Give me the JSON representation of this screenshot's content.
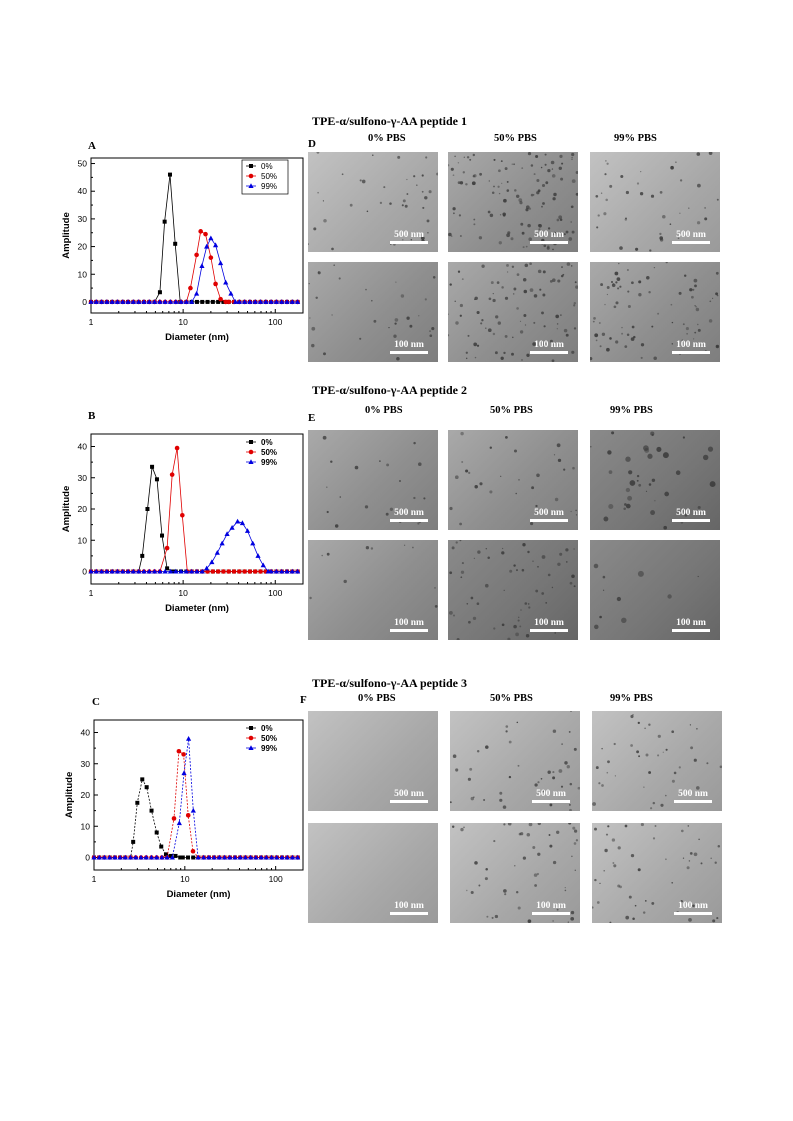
{
  "sections": [
    {
      "title": "TPE-α/sulfono-γ-AA peptide 1",
      "chart_letter": "A",
      "micro_letter": "D",
      "columns": [
        "0% PBS",
        "50% PBS",
        "99% PBS"
      ]
    },
    {
      "title": "TPE-α/sulfono-γ-AA peptide 2",
      "chart_letter": "B",
      "micro_letter": "E",
      "columns": [
        "0% PBS",
        "50% PBS",
        "99% PBS"
      ]
    },
    {
      "title": "TPE-α/sulfono-γ-AA peptide 3",
      "chart_letter": "C",
      "micro_letter": "F",
      "columns": [
        "0% PBS",
        "50% PBS",
        "99% PBS"
      ]
    }
  ],
  "scale_bars": {
    "top_row": "500 nm",
    "bottom_row": "100 nm"
  },
  "colors": {
    "0%": "#000000",
    "50%": "#e00000",
    "99%": "#0000e0"
  },
  "chart_data": [
    {
      "type": "scatter",
      "panel": "A",
      "xlabel": "Diameter (nm)",
      "ylabel": "Amplitude",
      "xscale": "log",
      "xlim": [
        1,
        200
      ],
      "ylim": [
        -4,
        52
      ],
      "yticks": [
        0,
        10,
        20,
        30,
        40,
        50
      ],
      "xticks": [
        1,
        10,
        100
      ],
      "legend_position": "top-right",
      "series": [
        {
          "name": "0%",
          "marker": "square",
          "color": "#000000",
          "x": [
            5.6,
            6.3,
            7.2,
            8.2,
            9.3
          ],
          "y": [
            3.5,
            29,
            46,
            21,
            0
          ]
        },
        {
          "name": "50%",
          "marker": "circle",
          "color": "#e00000",
          "x": [
            12,
            14,
            15.5,
            17.5,
            20,
            22.5,
            25.5,
            29
          ],
          "y": [
            5,
            17,
            25.5,
            24.5,
            16,
            6.5,
            1,
            0
          ]
        },
        {
          "name": "99%",
          "marker": "triangle",
          "color": "#0000e0",
          "x": [
            14,
            16,
            18,
            20,
            22.5,
            25.5,
            29,
            33,
            37
          ],
          "y": [
            3,
            13,
            20,
            23,
            20.5,
            14,
            7,
            3,
            0
          ]
        }
      ]
    },
    {
      "type": "scatter",
      "panel": "B",
      "xlabel": "Diameter (nm)",
      "ylabel": "Amplitude",
      "xscale": "log",
      "xlim": [
        1,
        200
      ],
      "ylim": [
        -4,
        44
      ],
      "yticks": [
        0,
        10,
        20,
        30,
        40
      ],
      "xticks": [
        1,
        10,
        100
      ],
      "legend_position": "top-right",
      "series": [
        {
          "name": "0%",
          "marker": "square",
          "color": "#000000",
          "x": [
            3.6,
            4.1,
            4.6,
            5.2,
            5.9,
            6.7,
            7.6
          ],
          "y": [
            5,
            20,
            33.5,
            29.5,
            11.5,
            1,
            0
          ]
        },
        {
          "name": "50%",
          "marker": "circle",
          "color": "#e00000",
          "x": [
            6.7,
            7.6,
            8.6,
            9.8,
            11.1
          ],
          "y": [
            7.5,
            31,
            39.5,
            18,
            0
          ]
        },
        {
          "name": "99%",
          "marker": "triangle",
          "color": "#0000e0",
          "x": [
            18,
            20.5,
            23.5,
            26.5,
            30,
            34,
            39,
            44,
            50,
            57,
            65,
            74,
            84
          ],
          "y": [
            1,
            3,
            6,
            9,
            12,
            14,
            16,
            15.5,
            13,
            9,
            5,
            2,
            0
          ]
        }
      ]
    },
    {
      "type": "scatter",
      "panel": "C",
      "xlabel": "Diameter (nm)",
      "ylabel": "Amplitude",
      "xscale": "log",
      "xlim": [
        1,
        200
      ],
      "ylim": [
        -4,
        44
      ],
      "yticks": [
        0,
        10,
        20,
        30,
        40
      ],
      "xticks": [
        1,
        10,
        100
      ],
      "legend_position": "top-right",
      "series": [
        {
          "name": "0%",
          "marker": "square",
          "color": "#000000",
          "x": [
            2.7,
            3.0,
            3.4,
            3.8,
            4.3,
            4.9,
            5.5,
            6.2,
            7.0,
            7.9,
            8.9
          ],
          "y": [
            5,
            17.5,
            25,
            22.5,
            15,
            8,
            3.5,
            1,
            0.5,
            0.5,
            0
          ]
        },
        {
          "name": "50%",
          "marker": "circle",
          "color": "#e00000",
          "x": [
            7.6,
            8.6,
            9.7,
            10.9,
            12.3
          ],
          "y": [
            12.5,
            34,
            33,
            13.5,
            2
          ]
        },
        {
          "name": "99%",
          "marker": "triangle",
          "color": "#0000e0",
          "x": [
            8.7,
            9.8,
            11.0,
            12.4,
            14.0
          ],
          "y": [
            11,
            27,
            38,
            15,
            0
          ]
        }
      ]
    }
  ]
}
